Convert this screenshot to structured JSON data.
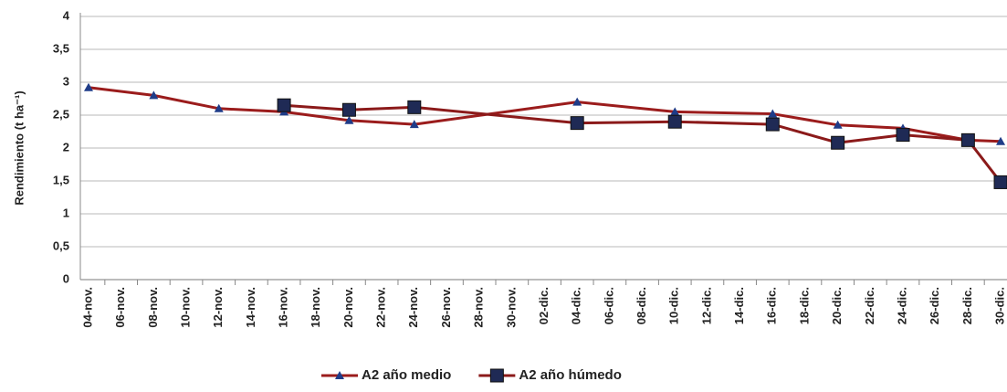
{
  "chart_data": {
    "type": "line",
    "y_label": "Rendimiento (t ha⁻¹)",
    "categories": [
      "04-nov.",
      "06-nov.",
      "08-nov.",
      "10-nov.",
      "12-nov.",
      "14-nov.",
      "16-nov.",
      "18-nov.",
      "20-nov.",
      "22-nov.",
      "24-nov.",
      "26-nov.",
      "28-nov.",
      "30-nov.",
      "02-dic.",
      "04-dic.",
      "06-dic.",
      "08-dic.",
      "10-dic.",
      "12-dic.",
      "14-dic.",
      "16-dic.",
      "18-dic.",
      "20-dic.",
      "22-dic.",
      "24-dic.",
      "26-dic.",
      "28-dic.",
      "30-dic."
    ],
    "ylim": [
      0,
      4
    ],
    "yticks": [
      0,
      {
        "value": 0.5,
        "label": "0,5"
      },
      1,
      {
        "value": 1.5,
        "label": "1,5"
      },
      2,
      {
        "value": 2.5,
        "label": "2,5"
      },
      3,
      {
        "value": 3.5,
        "label": "3,5"
      },
      4
    ],
    "grid": true,
    "legend": "bottom",
    "series": [
      {
        "name": "A2 año medio",
        "color": "#9b1c1c",
        "marker": "triangle",
        "marker_color": "#1f3c88",
        "x": [
          "04-nov.",
          "08-nov.",
          "12-nov.",
          "16-nov.",
          "20-nov.",
          "24-nov.",
          "04-dic.",
          "10-dic.",
          "16-dic.",
          "20-dic.",
          "24-dic.",
          "28-dic.",
          "30-dic."
        ],
        "values": [
          2.92,
          2.8,
          2.6,
          2.55,
          2.42,
          2.36,
          2.7,
          2.55,
          2.52,
          2.35,
          2.3,
          2.12,
          2.1
        ]
      },
      {
        "name": "A2 año húmedo",
        "color": "#8b1a1a",
        "marker": "square",
        "marker_color": "#1f2a55",
        "x": [
          "16-nov.",
          "20-nov.",
          "24-nov.",
          "04-dic.",
          "10-dic.",
          "16-dic.",
          "20-dic.",
          "24-dic.",
          "28-dic.",
          "30-dic."
        ],
        "values": [
          2.65,
          2.58,
          2.62,
          2.38,
          2.4,
          2.36,
          2.08,
          2.2,
          2.12,
          1.48
        ]
      }
    ]
  }
}
